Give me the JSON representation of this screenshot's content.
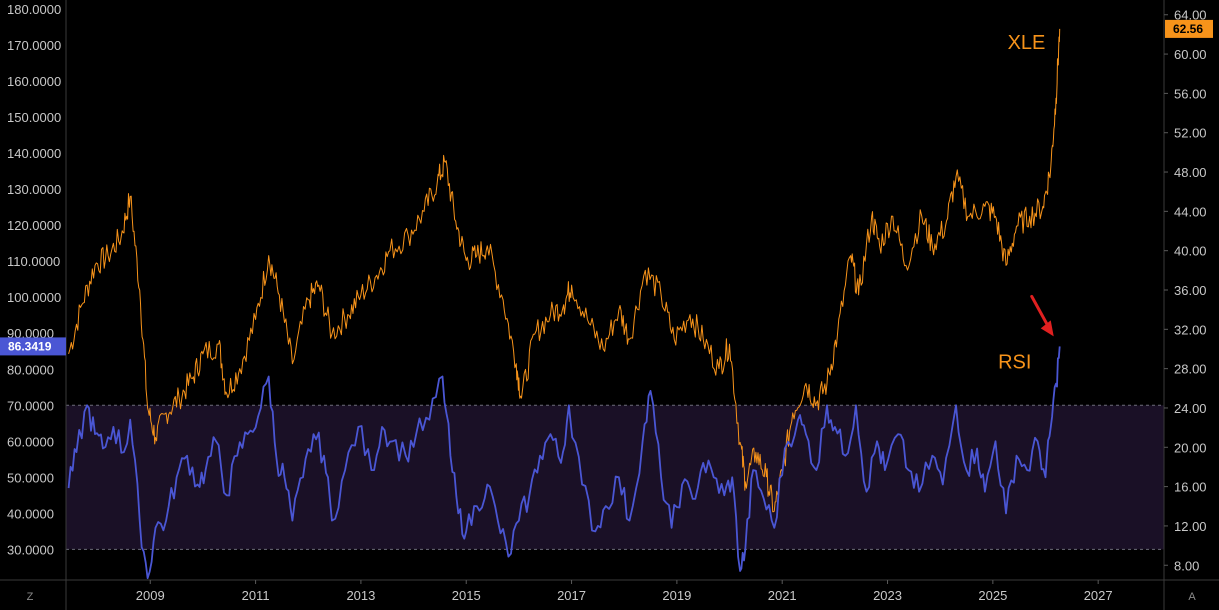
{
  "chart_data": {
    "type": "line",
    "left_axis": {
      "ticks": [
        "180.0000",
        "170.0000",
        "160.0000",
        "150.0000",
        "140.0000",
        "130.0000",
        "120.0000",
        "110.0000",
        "100.0000",
        "90.0000",
        "80.0000",
        "70.0000",
        "60.0000",
        "50.0000",
        "40.0000",
        "30.0000"
      ],
      "range": [
        21.5,
        182.5
      ]
    },
    "right_axis": {
      "ticks": [
        "64.00",
        "60.00",
        "56.00",
        "52.00",
        "48.00",
        "44.00",
        "40.00",
        "36.00",
        "32.00",
        "28.00",
        "24.00",
        "20.00",
        "16.00",
        "12.00",
        "8.00"
      ],
      "range": [
        6.5,
        65.5
      ]
    },
    "x_axis": {
      "ticks": [
        "2009",
        "2011",
        "2013",
        "2015",
        "2017",
        "2019",
        "2021",
        "2023",
        "2025",
        "2027"
      ],
      "range": [
        2007.4,
        2028.25
      ]
    },
    "rsi_band": {
      "upper": 70,
      "lower": 30
    },
    "series": [
      {
        "name": "XLE",
        "color": "#f7931a",
        "axis": "right",
        "points": [
          [
            2007.45,
            29.5
          ],
          [
            2007.7,
            34.5
          ],
          [
            2007.95,
            38.5
          ],
          [
            2008.2,
            39.5
          ],
          [
            2008.45,
            41.5
          ],
          [
            2008.62,
            45.5
          ],
          [
            2008.8,
            36.0
          ],
          [
            2008.95,
            24.0
          ],
          [
            2009.1,
            21.0
          ],
          [
            2009.3,
            23.5
          ],
          [
            2009.55,
            25.0
          ],
          [
            2009.8,
            27.0
          ],
          [
            2010.0,
            29.5
          ],
          [
            2010.3,
            30.5
          ],
          [
            2010.45,
            25.5
          ],
          [
            2010.7,
            28.0
          ],
          [
            2011.0,
            33.0
          ],
          [
            2011.25,
            39.5
          ],
          [
            2011.45,
            35.5
          ],
          [
            2011.7,
            28.5
          ],
          [
            2012.0,
            35.0
          ],
          [
            2012.2,
            36.5
          ],
          [
            2012.45,
            31.5
          ],
          [
            2012.75,
            33.5
          ],
          [
            2013.0,
            35.5
          ],
          [
            2013.3,
            37.5
          ],
          [
            2013.55,
            40.0
          ],
          [
            2013.9,
            41.5
          ],
          [
            2014.2,
            44.0
          ],
          [
            2014.45,
            47.0
          ],
          [
            2014.6,
            49.0
          ],
          [
            2014.8,
            43.0
          ],
          [
            2015.0,
            39.0
          ],
          [
            2015.2,
            39.5
          ],
          [
            2015.4,
            40.5
          ],
          [
            2015.7,
            35.0
          ],
          [
            2015.95,
            28.5
          ],
          [
            2016.05,
            25.0
          ],
          [
            2016.3,
            31.5
          ],
          [
            2016.6,
            33.5
          ],
          [
            2016.85,
            34.5
          ],
          [
            2017.0,
            36.5
          ],
          [
            2017.3,
            33.0
          ],
          [
            2017.6,
            30.0
          ],
          [
            2017.9,
            34.0
          ],
          [
            2018.1,
            31.0
          ],
          [
            2018.4,
            38.0
          ],
          [
            2018.7,
            35.5
          ],
          [
            2018.95,
            31.0
          ],
          [
            2019.25,
            33.5
          ],
          [
            2019.5,
            31.0
          ],
          [
            2019.8,
            28.0
          ],
          [
            2020.0,
            30.5
          ],
          [
            2020.2,
            20.5
          ],
          [
            2020.3,
            16.5
          ],
          [
            2020.5,
            19.5
          ],
          [
            2020.7,
            17.0
          ],
          [
            2020.85,
            13.5
          ],
          [
            2021.0,
            17.5
          ],
          [
            2021.2,
            23.5
          ],
          [
            2021.45,
            26.5
          ],
          [
            2021.65,
            24.5
          ],
          [
            2021.85,
            26.5
          ],
          [
            2022.05,
            31.5
          ],
          [
            2022.3,
            39.5
          ],
          [
            2022.45,
            35.5
          ],
          [
            2022.7,
            43.5
          ],
          [
            2022.85,
            40.5
          ],
          [
            2023.1,
            43.5
          ],
          [
            2023.35,
            38.5
          ],
          [
            2023.65,
            43.5
          ],
          [
            2023.85,
            40.5
          ],
          [
            2024.1,
            42.5
          ],
          [
            2024.3,
            47.5
          ],
          [
            2024.55,
            43.5
          ],
          [
            2024.85,
            44.5
          ],
          [
            2025.05,
            43.5
          ],
          [
            2025.25,
            38.5
          ],
          [
            2025.45,
            42.5
          ],
          [
            2025.7,
            43.5
          ],
          [
            2025.95,
            44.5
          ],
          [
            2026.1,
            48.5
          ],
          [
            2026.2,
            55.5
          ],
          [
            2026.27,
            62.56
          ]
        ]
      },
      {
        "name": "RSI",
        "color": "#4a56d4",
        "axis": "left",
        "points": [
          [
            2007.45,
            47
          ],
          [
            2007.6,
            57
          ],
          [
            2007.8,
            70
          ],
          [
            2007.95,
            62
          ],
          [
            2008.1,
            58
          ],
          [
            2008.3,
            64
          ],
          [
            2008.5,
            57
          ],
          [
            2008.62,
            66
          ],
          [
            2008.8,
            38
          ],
          [
            2008.95,
            22
          ],
          [
            2009.1,
            36
          ],
          [
            2009.3,
            38
          ],
          [
            2009.5,
            50
          ],
          [
            2009.7,
            56
          ],
          [
            2009.9,
            48
          ],
          [
            2010.05,
            52
          ],
          [
            2010.25,
            60
          ],
          [
            2010.45,
            45
          ],
          [
            2010.65,
            56
          ],
          [
            2010.85,
            62
          ],
          [
            2011.05,
            67
          ],
          [
            2011.25,
            78
          ],
          [
            2011.4,
            55
          ],
          [
            2011.55,
            50
          ],
          [
            2011.7,
            38
          ],
          [
            2011.9,
            50
          ],
          [
            2012.1,
            62
          ],
          [
            2012.3,
            56
          ],
          [
            2012.45,
            38
          ],
          [
            2012.7,
            52
          ],
          [
            2012.95,
            64
          ],
          [
            2013.2,
            52
          ],
          [
            2013.4,
            64
          ],
          [
            2013.6,
            60
          ],
          [
            2013.85,
            56
          ],
          [
            2014.05,
            62
          ],
          [
            2014.3,
            66
          ],
          [
            2014.55,
            78
          ],
          [
            2014.7,
            56
          ],
          [
            2014.85,
            40
          ],
          [
            2015.0,
            35
          ],
          [
            2015.2,
            42
          ],
          [
            2015.4,
            48
          ],
          [
            2015.6,
            38
          ],
          [
            2015.8,
            28
          ],
          [
            2016.0,
            38
          ],
          [
            2016.2,
            45
          ],
          [
            2016.4,
            56
          ],
          [
            2016.6,
            62
          ],
          [
            2016.8,
            54
          ],
          [
            2016.95,
            70
          ],
          [
            2017.2,
            48
          ],
          [
            2017.45,
            35
          ],
          [
            2017.65,
            42
          ],
          [
            2017.9,
            50
          ],
          [
            2018.1,
            38
          ],
          [
            2018.35,
            60
          ],
          [
            2018.5,
            74
          ],
          [
            2018.7,
            50
          ],
          [
            2018.9,
            36
          ],
          [
            2019.1,
            48
          ],
          [
            2019.3,
            44
          ],
          [
            2019.5,
            54
          ],
          [
            2019.7,
            50
          ],
          [
            2019.9,
            45
          ],
          [
            2020.05,
            50
          ],
          [
            2020.2,
            24
          ],
          [
            2020.3,
            30
          ],
          [
            2020.45,
            52
          ],
          [
            2020.65,
            44
          ],
          [
            2020.85,
            36
          ],
          [
            2021.05,
            58
          ],
          [
            2021.3,
            66
          ],
          [
            2021.45,
            62
          ],
          [
            2021.65,
            52
          ],
          [
            2021.85,
            70
          ],
          [
            2022.0,
            64
          ],
          [
            2022.2,
            56
          ],
          [
            2022.4,
            70
          ],
          [
            2022.6,
            46
          ],
          [
            2022.8,
            60
          ],
          [
            2022.95,
            52
          ],
          [
            2023.2,
            62
          ],
          [
            2023.4,
            52
          ],
          [
            2023.6,
            46
          ],
          [
            2023.85,
            56
          ],
          [
            2024.05,
            48
          ],
          [
            2024.3,
            70
          ],
          [
            2024.5,
            52
          ],
          [
            2024.7,
            58
          ],
          [
            2024.85,
            46
          ],
          [
            2025.05,
            60
          ],
          [
            2025.25,
            40
          ],
          [
            2025.45,
            56
          ],
          [
            2025.65,
            52
          ],
          [
            2025.85,
            60
          ],
          [
            2026.0,
            50
          ],
          [
            2026.1,
            64
          ],
          [
            2026.2,
            76
          ],
          [
            2026.27,
            86.3419
          ]
        ]
      }
    ],
    "labels": {
      "xle": {
        "text": "XLE",
        "color": "#f7931a",
        "at": [
          2025.28,
          60.5
        ]
      },
      "rsi": {
        "text": "RSI",
        "color": "#f7931a",
        "at": [
          2025.1,
          28.0
        ]
      }
    },
    "last_values": {
      "rsi": {
        "text": "86.3419",
        "color": "#4a56d4"
      },
      "xle": {
        "text": "62.56",
        "color": "#f7931a"
      }
    },
    "annotation": {
      "type": "arrow",
      "color": "#e02020",
      "points_to": "RSI last value"
    },
    "corner_labels": {
      "left": "Z",
      "right": "A"
    },
    "grid": false
  }
}
